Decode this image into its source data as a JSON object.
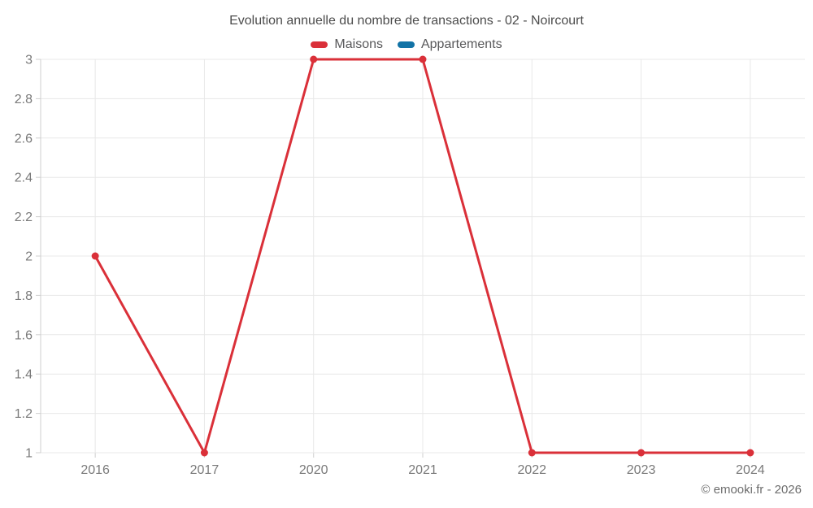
{
  "title": "Evolution annuelle du nombre de transactions - 02 - Noircourt",
  "copyright": "© emooki.fr - 2026",
  "colors": {
    "maisons": "#da3039",
    "appartements": "#1273a6",
    "grid": "#e8e8e8",
    "axis": "#cfcfcf",
    "axis_text": "#7a7a7a",
    "title_text": "#4c4c4c",
    "legend_text": "#58585a"
  },
  "chart_data": {
    "type": "line",
    "title": "Evolution annuelle du nombre de transactions - 02 - Noircourt",
    "categories": [
      "2016",
      "2017",
      "2020",
      "2021",
      "2022",
      "2023",
      "2024"
    ],
    "series": [
      {
        "name": "Maisons",
        "color": "#da3039",
        "values": [
          2,
          1,
          3,
          3,
          1,
          1,
          1
        ]
      },
      {
        "name": "Appartements",
        "color": "#1273a6",
        "values": [
          null,
          null,
          null,
          null,
          null,
          null,
          null
        ]
      }
    ],
    "xlabel": "",
    "ylabel": "",
    "ylim": [
      1,
      3
    ],
    "yticks": [
      1,
      1.2,
      1.4,
      1.6,
      1.8,
      2,
      2.2,
      2.4,
      2.6,
      2.8,
      3
    ],
    "ytick_labels": [
      "1",
      "1.2",
      "1.4",
      "1.6",
      "1.8",
      "2",
      "2.2",
      "2.4",
      "2.6",
      "2.8",
      "3"
    ],
    "grid": true,
    "legend_position": "top"
  },
  "legend": {
    "items": [
      {
        "label": "Maisons"
      },
      {
        "label": "Appartements"
      }
    ]
  }
}
